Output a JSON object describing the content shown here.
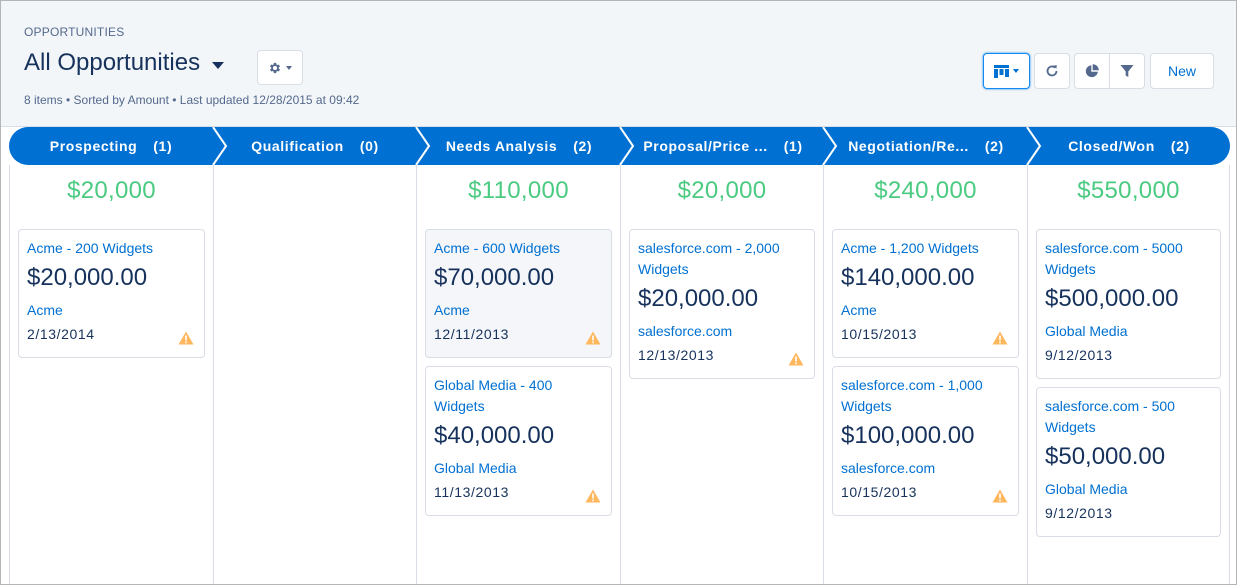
{
  "header": {
    "eyebrow": "OPPORTUNITIES",
    "title": "All Opportunities",
    "meta": "8 items • Sorted by Amount • Last updated 12/28/2015  at 09:42",
    "new_label": "New"
  },
  "colors": {
    "stage_blue": "#0070d2",
    "total_green": "#4bca81",
    "link_blue": "#0070d2",
    "warning": "#ffb75d"
  },
  "stages": [
    {
      "label": "Prospecting",
      "count": "(1)",
      "total": "$20,000"
    },
    {
      "label": "Qualification",
      "count": "(0)",
      "total": ""
    },
    {
      "label": "Needs Analysis",
      "count": "(2)",
      "total": "$110,000"
    },
    {
      "label": "Proposal/Price ...",
      "count": "(1)",
      "total": "$20,000"
    },
    {
      "label": "Negotiation/Re...",
      "count": "(2)",
      "total": "$240,000"
    },
    {
      "label": "Closed/Won",
      "count": "(2)",
      "total": "$550,000"
    }
  ],
  "cards": [
    {
      "name": "Acme - 200 Widgets",
      "amount": "$20,000.00",
      "account": "Acme",
      "date": "2/13/2014"
    },
    {
      "name": "Acme - 600 Widgets",
      "amount": "$70,000.00",
      "account": "Acme",
      "date": "12/11/2013"
    },
    {
      "name": "Global Media - 400 Widgets",
      "amount": "$40,000.00",
      "account": "Global Media",
      "date": "11/13/2013"
    },
    {
      "name": "salesforce.com - 2,000 Widgets",
      "amount": "$20,000.00",
      "account": "salesforce.com",
      "date": "12/13/2013"
    },
    {
      "name": "Acme - 1,200 Widgets",
      "amount": "$140,000.00",
      "account": "Acme",
      "date": "10/15/2013"
    },
    {
      "name": "salesforce.com - 1,000 Widgets",
      "amount": "$100,000.00",
      "account": "salesforce.com",
      "date": "10/15/2013"
    },
    {
      "name": "salesforce.com - 5000 Widgets",
      "amount": "$500,000.00",
      "account": "Global Media",
      "date": "9/12/2013"
    },
    {
      "name": "salesforce.com - 500 Widgets",
      "amount": "$50,000.00",
      "account": "Global Media",
      "date": "9/12/2013"
    }
  ]
}
